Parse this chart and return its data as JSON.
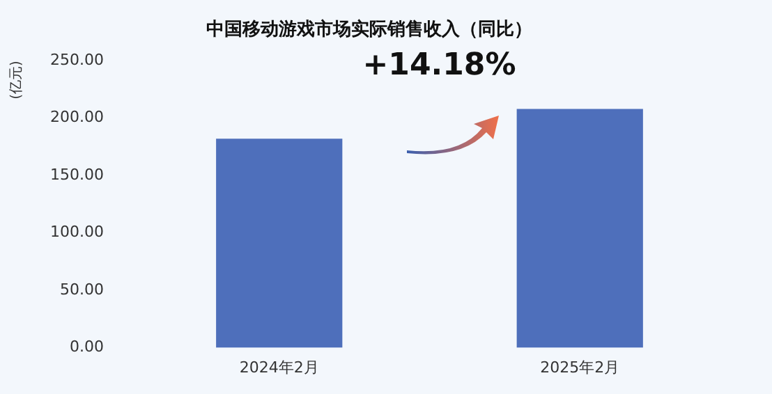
{
  "chart_data": {
    "type": "bar",
    "title": "中国移动游戏市场实际销售收入（同比）",
    "ylabel": "(亿元)",
    "categories": [
      "2024年2月",
      "2025年2月"
    ],
    "values": [
      182,
      208
    ],
    "color": "#4e6fbb",
    "ylim": [
      0,
      250
    ],
    "yticks": [
      {
        "value": 0,
        "label": "0.00"
      },
      {
        "value": 50,
        "label": "50.00"
      },
      {
        "value": 100,
        "label": "100.00"
      },
      {
        "value": 150,
        "label": "150.00"
      },
      {
        "value": 200,
        "label": "200.00"
      },
      {
        "value": 250,
        "label": "250.00"
      }
    ],
    "grid": false,
    "legend": false,
    "annotations": [
      "+14.18%"
    ]
  }
}
